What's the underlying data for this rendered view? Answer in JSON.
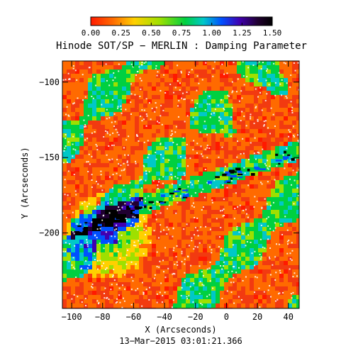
{
  "chart_data": {
    "type": "heatmap",
    "title": "Hinode SOT/SP − MERLIN : Damping Parameter",
    "xlabel": "X (Arcseconds)",
    "ylabel": "Y (Arcseconds)",
    "timestamp": "13−Mar−2015 03:01:21.366",
    "xlim": [
      -106,
      47
    ],
    "ylim": [
      -250,
      -86
    ],
    "x_ticks": [
      -100,
      -80,
      -60,
      -40,
      -20,
      0,
      20,
      40
    ],
    "x_tick_labels": [
      "−100",
      "−80",
      "−60",
      "−40",
      "−20",
      "0",
      "20",
      "40"
    ],
    "y_ticks": [
      -100,
      -150,
      -200
    ],
    "y_tick_labels": [
      "−100",
      "−150",
      "−200"
    ],
    "colorbar": {
      "range": [
        0.0,
        1.5
      ],
      "ticks": [
        0.0,
        0.25,
        0.5,
        0.75,
        1.0,
        1.25,
        1.5
      ],
      "tick_labels": [
        "0.00",
        "0.25",
        "0.50",
        "0.75",
        "1.00",
        "1.25",
        "1.50"
      ],
      "colormap": [
        "#ff1a00",
        "#ff6a00",
        "#ffd000",
        "#9ee000",
        "#00d040",
        "#00c8c8",
        "#0050ff",
        "#4000b0",
        "#200030",
        "#000000"
      ]
    },
    "colormap_name": "rainbow (red → black)"
  }
}
